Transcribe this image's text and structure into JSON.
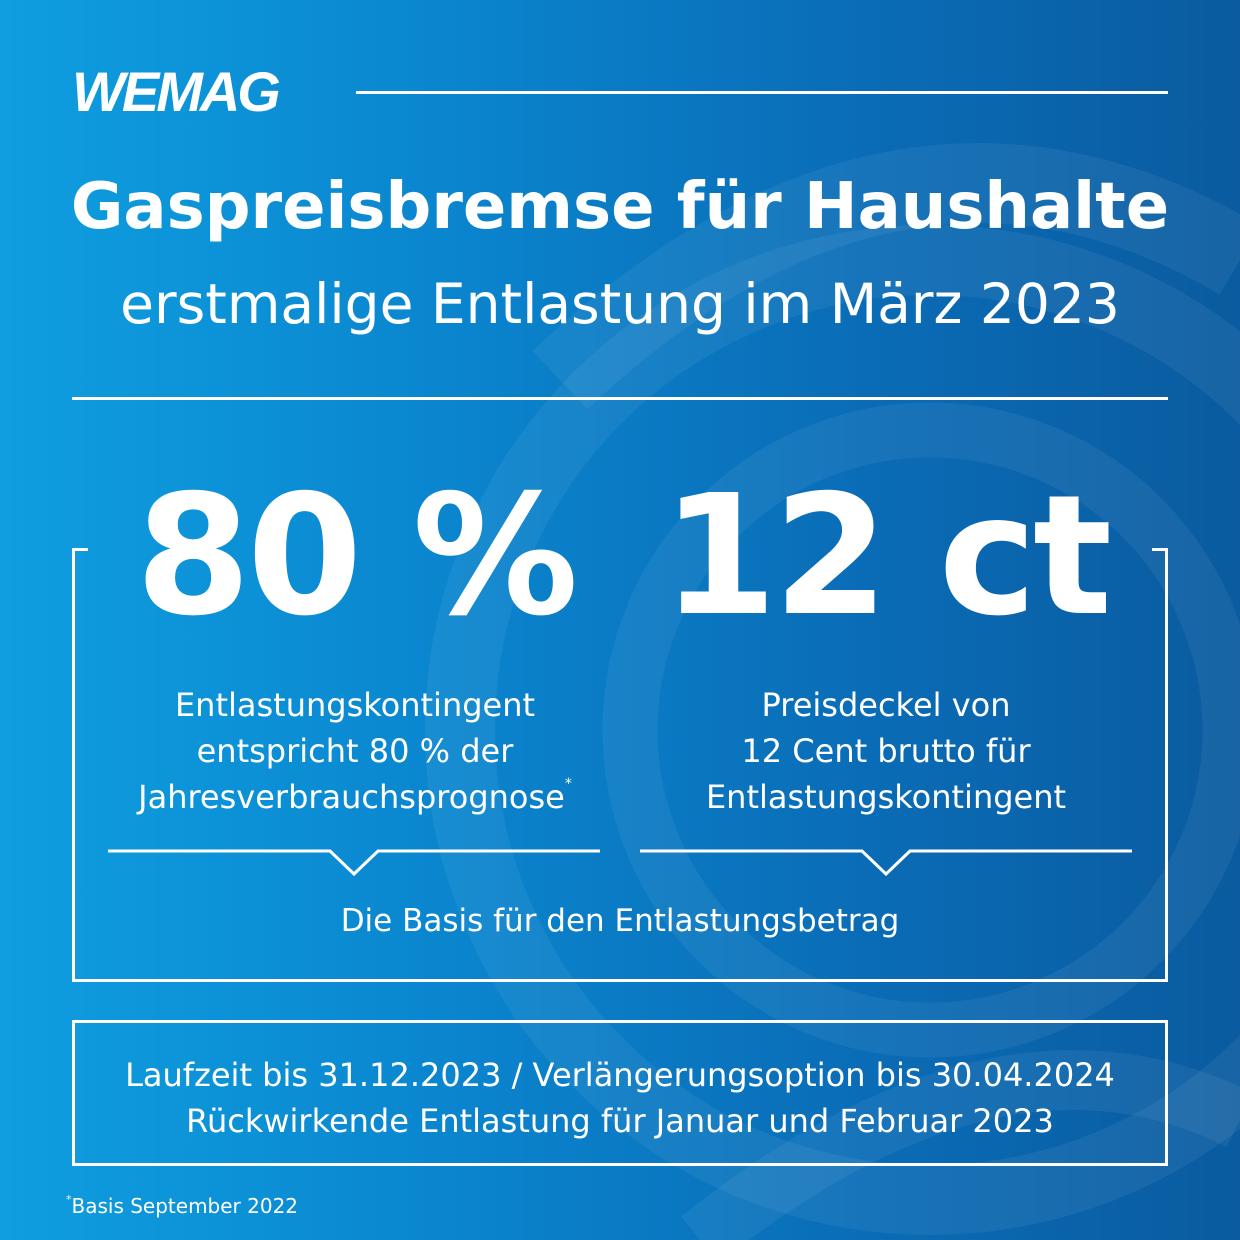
{
  "brand": {
    "logo_text": "WEMAG"
  },
  "header": {
    "title": "Gaspreisbremse für Haushalte",
    "subtitle": "erstmalige Entlastung im März 2023"
  },
  "stats": [
    {
      "value": "80 %",
      "description_lines": [
        "Entlastungskontingent",
        "entspricht 80 % der",
        "Jahresverbrauchsprognose"
      ],
      "footnote_marker": "*"
    },
    {
      "value": "12 ct",
      "description_lines": [
        "Preisdeckel von",
        "12 Cent brutto für",
        "Entlastungskontingent"
      ]
    }
  ],
  "basis_text": "Die Basis für den Entlastungsbetrag",
  "info_lines": [
    "Laufzeit bis 31.12.2023 / Verlängerungsoption bis 30.04.2024",
    "Rückwirkende Entlastung für Januar und Februar 2023"
  ],
  "footnote": {
    "marker": "*",
    "text": "Basis September 2022"
  },
  "colors": {
    "background_left": "#0f9ee0",
    "background_right": "#0a5b9f",
    "foreground": "#ffffff"
  }
}
